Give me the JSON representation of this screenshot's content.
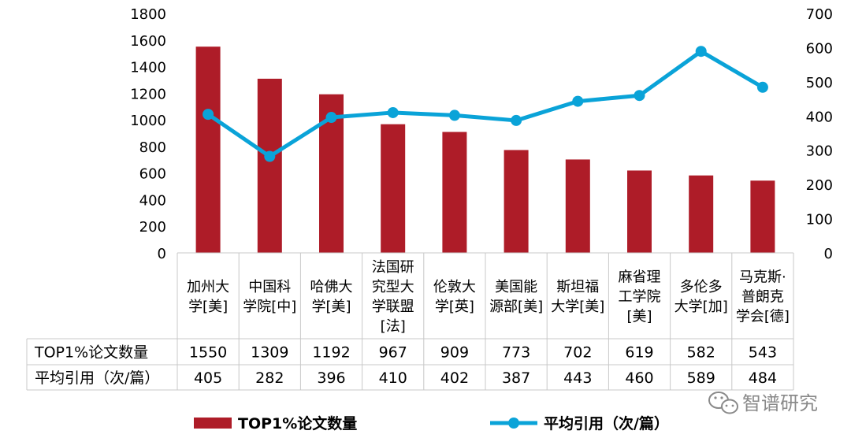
{
  "chart_data": {
    "type": "bar+line",
    "categories": [
      [
        "加州大",
        "学[美]"
      ],
      [
        "中国科",
        "学院[中]"
      ],
      [
        "哈佛大",
        "学[美]"
      ],
      [
        "法国研",
        "究型大",
        "学联盟",
        "[法]"
      ],
      [
        "伦敦大",
        "学[英]"
      ],
      [
        "美国能",
        "源部[美]"
      ],
      [
        "斯坦福",
        "大学[美]"
      ],
      [
        "麻省理",
        "工学院",
        "[美]"
      ],
      [
        "多伦多",
        "大学[加]"
      ],
      [
        "马克斯·",
        "普朗克",
        "学会[德]"
      ]
    ],
    "series": [
      {
        "name": "TOP1%论文数量",
        "type": "bar",
        "axis": "left",
        "color": "#ae1c28",
        "values": [
          1550,
          1309,
          1192,
          967,
          909,
          773,
          702,
          619,
          582,
          543
        ]
      },
      {
        "name": "平均引用（次/篇）",
        "type": "line",
        "axis": "right",
        "color": "#0aa3d8",
        "values": [
          405,
          282,
          396,
          410,
          402,
          387,
          443,
          460,
          589,
          484
        ]
      }
    ],
    "left_axis": {
      "min": 0,
      "max": 1800,
      "step": 200,
      "ticks": [
        "0",
        "200",
        "400",
        "600",
        "800",
        "1000",
        "1200",
        "1400",
        "1600",
        "1800"
      ]
    },
    "right_axis": {
      "min": 0,
      "max": 700,
      "step": 100,
      "ticks": [
        "0",
        "100",
        "200",
        "300",
        "400",
        "500",
        "600",
        "700"
      ]
    },
    "table": {
      "row_headers": [
        "TOP1%论文数量",
        "平均引用（次/篇）"
      ],
      "rows": [
        [
          "1550",
          "1309",
          "1192",
          "967",
          "909",
          "773",
          "702",
          "619",
          "582",
          "543"
        ],
        [
          "405",
          "282",
          "396",
          "410",
          "402",
          "387",
          "443",
          "460",
          "589",
          "484"
        ]
      ]
    },
    "legend": [
      {
        "label": "TOP1%论文数量",
        "kind": "bar",
        "color": "#ae1c28"
      },
      {
        "label": "平均引用（次/篇）",
        "kind": "line",
        "color": "#0aa3d8"
      }
    ],
    "legend_position": "bottom"
  },
  "watermark": {
    "text": "智谱研究"
  }
}
